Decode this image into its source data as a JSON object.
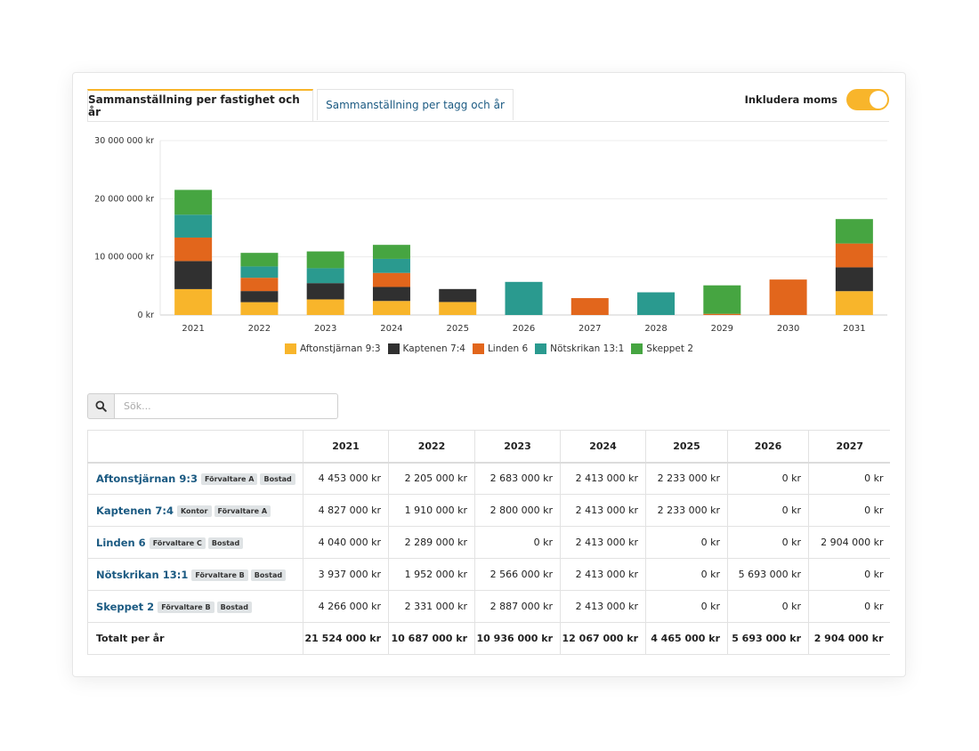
{
  "tabs": [
    {
      "label": "Sammanställning per fastighet och år",
      "active": true
    },
    {
      "label": "Sammanställning per tagg och år",
      "active": false
    }
  ],
  "toggle": {
    "label": "Inkludera moms",
    "on": true,
    "color": "#f8b52b"
  },
  "chart_data": {
    "type": "bar",
    "stacked": true,
    "categories": [
      "2021",
      "2022",
      "2023",
      "2024",
      "2025",
      "2026",
      "2027",
      "2028",
      "2029",
      "2030",
      "2031"
    ],
    "y_ticks": [
      {
        "value": 0,
        "label": "0 kr"
      },
      {
        "value": 10000000,
        "label": "10 000 000 kr"
      },
      {
        "value": 20000000,
        "label": "20 000 000 kr"
      },
      {
        "value": 30000000,
        "label": "30 000 000 kr"
      }
    ],
    "ylim": [
      0,
      30000000
    ],
    "grid": true,
    "legend_position": "bottom",
    "series": [
      {
        "name": "Aftonstjärnan 9:3",
        "color": "#f8b52b",
        "values": [
          4453000,
          2205000,
          2683000,
          2413000,
          2233000,
          0,
          0,
          0,
          0,
          0,
          4100000
        ]
      },
      {
        "name": "Kaptenen 7:4",
        "color": "#303030",
        "values": [
          4827000,
          1910000,
          2800000,
          2413000,
          2233000,
          0,
          0,
          0,
          0,
          0,
          4100000
        ]
      },
      {
        "name": "Linden 6",
        "color": "#e2661c",
        "values": [
          4040000,
          2289000,
          0,
          2413000,
          0,
          0,
          2904000,
          0,
          200000,
          6100000,
          4100000
        ]
      },
      {
        "name": "Nötskrikan 13:1",
        "color": "#2a9a8f",
        "values": [
          3937000,
          1952000,
          2566000,
          2413000,
          0,
          5693000,
          0,
          3900000,
          0,
          0,
          0
        ]
      },
      {
        "name": "Skeppet 2",
        "color": "#46a541",
        "values": [
          4266000,
          2331000,
          2887000,
          2413000,
          0,
          0,
          0,
          0,
          4900000,
          0,
          4200000
        ]
      }
    ]
  },
  "search": {
    "placeholder": "Sök..."
  },
  "table": {
    "columns": [
      "",
      "2021",
      "2022",
      "2023",
      "2024",
      "2025",
      "2026",
      "2027"
    ],
    "rows": [
      {
        "name": "Aftonstjärnan 9:3",
        "tags": [
          "Förvaltare A",
          "Bostad"
        ],
        "values": [
          "4 453 000 kr",
          "2 205 000 kr",
          "2 683 000 kr",
          "2 413 000 kr",
          "2 233 000 kr",
          "0 kr",
          "0 kr"
        ]
      },
      {
        "name": "Kaptenen 7:4",
        "tags": [
          "Kontor",
          "Förvaltare A"
        ],
        "values": [
          "4 827 000 kr",
          "1 910 000 kr",
          "2 800 000 kr",
          "2 413 000 kr",
          "2 233 000 kr",
          "0 kr",
          "0 kr"
        ]
      },
      {
        "name": "Linden 6",
        "tags": [
          "Förvaltare C",
          "Bostad"
        ],
        "values": [
          "4 040 000 kr",
          "2 289 000 kr",
          "0 kr",
          "2 413 000 kr",
          "0 kr",
          "0 kr",
          "2 904 000 kr"
        ]
      },
      {
        "name": "Nötskrikan 13:1",
        "tags": [
          "Förvaltare B",
          "Bostad"
        ],
        "values": [
          "3 937 000 kr",
          "1 952 000 kr",
          "2 566 000 kr",
          "2 413 000 kr",
          "0 kr",
          "5 693 000 kr",
          "0 kr"
        ]
      },
      {
        "name": "Skeppet 2",
        "tags": [
          "Förvaltare B",
          "Bostad"
        ],
        "values": [
          "4 266 000 kr",
          "2 331 000 kr",
          "2 887 000 kr",
          "2 413 000 kr",
          "0 kr",
          "0 kr",
          "0 kr"
        ]
      }
    ],
    "total": {
      "label": "Totalt per år",
      "values": [
        "21 524 000 kr",
        "10 687 000 kr",
        "10 936 000 kr",
        "12 067 000 kr",
        "4 465 000 kr",
        "5 693 000 kr",
        "2 904 000 kr"
      ]
    }
  }
}
